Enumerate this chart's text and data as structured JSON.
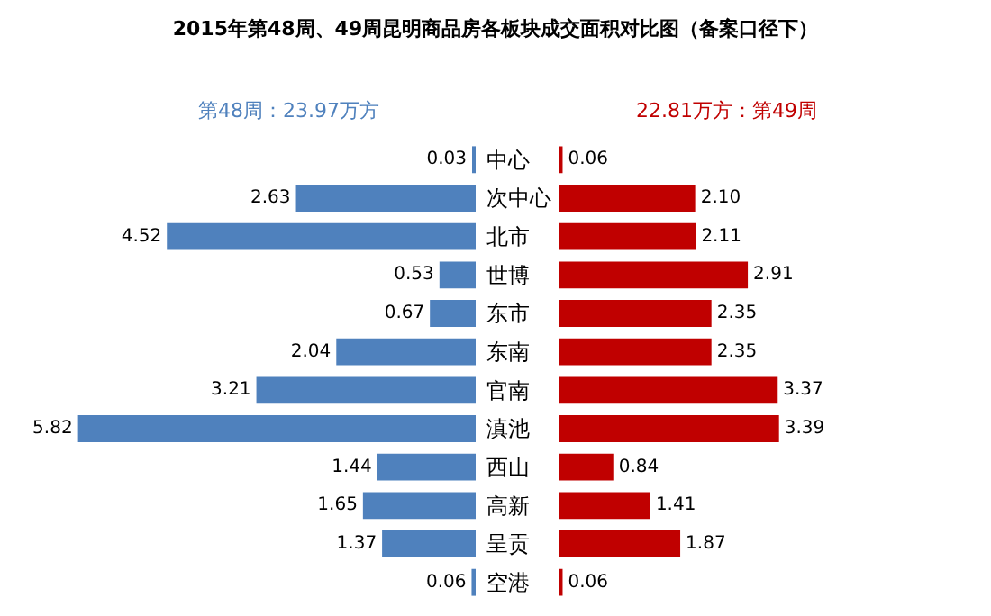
{
  "chart_data": [
    {
      "type": "bar",
      "orientation": "horizontal",
      "title": "2015年第48周、49周昆明商品房各板块成交面积对比图（备案口径下）",
      "annotations": [
        "第48周：23.97万方"
      ],
      "categories": [
        "中心",
        "次中心",
        "北市",
        "世博",
        "东市",
        "东南",
        "官南",
        "滇池",
        "西山",
        "高新",
        "呈贡",
        "空港"
      ],
      "color": "#4f81bd",
      "values": [
        0.03,
        2.63,
        4.52,
        0.53,
        0.67,
        2.04,
        3.21,
        5.82,
        1.44,
        1.65,
        1.37,
        0.06
      ],
      "value_labels": [
        "0.03",
        "2.63",
        "4.52",
        "0.53",
        "0.67",
        "2.04",
        "3.21",
        "5.82",
        "1.44",
        "1.65",
        "1.37",
        "0.06"
      ],
      "tick_labels": "y"
    },
    {
      "type": "bar",
      "orientation": "horizontal",
      "annotations": [
        "22.81万方：第49周"
      ],
      "categories": [
        null,
        null,
        null,
        null,
        null,
        null,
        null,
        null,
        null,
        null,
        null,
        null
      ],
      "color": "#c00000",
      "values": [
        0.06,
        2.1,
        2.11,
        2.91,
        2.35,
        2.35,
        3.37,
        3.39,
        0.84,
        1.41,
        1.87,
        0.06
      ],
      "value_labels": [
        "0.06",
        "2.10",
        "2.11",
        "2.91",
        "2.35",
        "2.35",
        "3.37",
        "3.39",
        "0.84",
        "1.41",
        "1.87",
        "0.06"
      ],
      "tick_labels": false
    }
  ]
}
